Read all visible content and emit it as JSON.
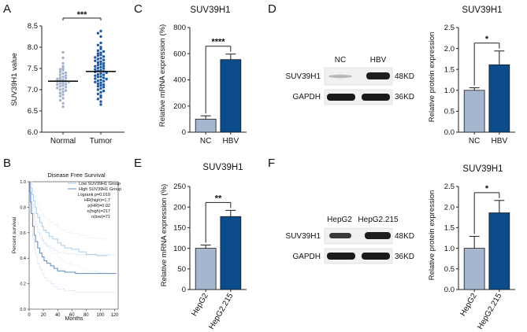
{
  "panel_labels": [
    "A",
    "B",
    "C",
    "D",
    "E",
    "F"
  ],
  "colors": {
    "light": "#a5b6cf",
    "dark": "#0d4c8c",
    "edge": "#1a1a1a",
    "scatter_light": "#a4b4cc",
    "scatter_dark": "#1f5aa6"
  },
  "chart_data": [
    {
      "id": "A",
      "type": "scatter",
      "title": "",
      "ylabel": "SUV39H1 value",
      "xlabel": "",
      "categories": [
        "Normal",
        "Tumor"
      ],
      "ylim": [
        6.0,
        8.5
      ],
      "yticks": [
        "6.0",
        "6.5",
        "7.0",
        "7.5",
        "8.0",
        "8.5"
      ],
      "means": [
        7.2,
        7.43
      ],
      "significance": "***",
      "series": [
        {
          "name": "Normal",
          "values": [
            7.88,
            7.75,
            7.62,
            7.55,
            7.5,
            7.48,
            7.46,
            7.42,
            7.4,
            7.38,
            7.35,
            7.33,
            7.3,
            7.28,
            7.27,
            7.25,
            7.23,
            7.22,
            7.2,
            7.19,
            7.18,
            7.16,
            7.15,
            7.13,
            7.12,
            7.1,
            7.08,
            7.06,
            7.04,
            7.02,
            7.0,
            6.98,
            6.95,
            6.92,
            6.88,
            6.85,
            6.8,
            6.75,
            6.68,
            6.6
          ]
        },
        {
          "name": "Tumor",
          "values": [
            8.38,
            8.33,
            8.25,
            8.1,
            8.05,
            8.0,
            7.96,
            7.92,
            7.9,
            7.87,
            7.85,
            7.82,
            7.8,
            7.78,
            7.76,
            7.74,
            7.72,
            7.7,
            7.68,
            7.66,
            7.64,
            7.62,
            7.6,
            7.58,
            7.56,
            7.55,
            7.53,
            7.51,
            7.5,
            7.48,
            7.46,
            7.44,
            7.43,
            7.42,
            7.4,
            7.38,
            7.36,
            7.35,
            7.33,
            7.31,
            7.3,
            7.28,
            7.26,
            7.25,
            7.23,
            7.21,
            7.2,
            7.18,
            7.16,
            7.14,
            7.12,
            7.1,
            7.08,
            7.06,
            7.03,
            7.0,
            6.97,
            6.94,
            6.9,
            6.86,
            6.82,
            6.78,
            6.72,
            6.65
          ]
        }
      ]
    },
    {
      "id": "B",
      "type": "line",
      "title": "Disease Free Survival",
      "xlabel": "Months",
      "ylabel": "Percent survival",
      "xlim": [
        0,
        125
      ],
      "ylim": [
        0,
        1.0
      ],
      "xticks": [
        "0",
        "20",
        "40",
        "60",
        "80",
        "100",
        "120"
      ],
      "yticks": [
        "0.0",
        "0.2",
        "0.4",
        "0.6",
        "0.8",
        "1.0"
      ],
      "legend": [
        "Low SUV39H1 Group",
        "High SUV39H1 Group"
      ],
      "stats": [
        "Logrank p=0.019",
        "HR(high)=1.7",
        "p(HR)=0.02",
        "n(high)=217",
        "n(low)=71"
      ],
      "series": [
        {
          "name": "Low SUV39H1 Group",
          "x": [
            0,
            2,
            4,
            6,
            8,
            10,
            12,
            15,
            18,
            20,
            24,
            28,
            33,
            40,
            45,
            50,
            60,
            70,
            80,
            95,
            105,
            110
          ],
          "y": [
            1.0,
            0.95,
            0.9,
            0.85,
            0.8,
            0.75,
            0.72,
            0.68,
            0.65,
            0.62,
            0.6,
            0.57,
            0.55,
            0.52,
            0.5,
            0.48,
            0.47,
            0.45,
            0.43,
            0.42,
            0.42,
            0.42
          ]
        },
        {
          "name": "High SUV39H1 Group",
          "x": [
            0,
            1,
            2,
            3,
            5,
            7,
            9,
            12,
            15,
            18,
            21,
            25,
            30,
            35,
            40,
            45,
            50,
            55,
            65,
            80,
            100,
            122
          ],
          "y": [
            1.0,
            0.92,
            0.84,
            0.75,
            0.65,
            0.58,
            0.53,
            0.48,
            0.44,
            0.41,
            0.38,
            0.36,
            0.34,
            0.32,
            0.3,
            0.3,
            0.29,
            0.29,
            0.28,
            0.28,
            0.28,
            0.28
          ]
        }
      ]
    },
    {
      "id": "C",
      "type": "bar",
      "title": "SUV39H1",
      "ylabel": "Relative mRNA expression (%)",
      "xlabel": "",
      "categories": [
        "NC",
        "HBV"
      ],
      "values": [
        100,
        555
      ],
      "errors": [
        25,
        42
      ],
      "ylim": [
        0,
        800
      ],
      "yticks": [
        "0",
        "200",
        "400",
        "600",
        "800"
      ],
      "significance": "****"
    },
    {
      "id": "D",
      "type": "bar",
      "title": "SUV39H1",
      "ylabel": "Relative protein expression",
      "xlabel": "",
      "categories": [
        "NC",
        "HBV"
      ],
      "values": [
        1.0,
        1.61
      ],
      "errors": [
        0.06,
        0.33
      ],
      "ylim": [
        0,
        2.5
      ],
      "yticks": [
        "0.0",
        "0.5",
        "1.0",
        "1.5",
        "2.0",
        "2.5"
      ],
      "significance": "*"
    },
    {
      "id": "E",
      "type": "bar",
      "title": "SUV39H1",
      "ylabel": "Relative mRNA expression (%)",
      "xlabel": "",
      "categories": [
        "HepG2",
        "HepG2.215"
      ],
      "values": [
        100,
        177
      ],
      "errors": [
        8,
        15
      ],
      "ylim": [
        0,
        250
      ],
      "yticks": [
        "0",
        "50",
        "100",
        "150",
        "200",
        "250"
      ],
      "significance": "**"
    },
    {
      "id": "F",
      "type": "bar",
      "title": "SUV39H1",
      "ylabel": "Relative protein expression",
      "xlabel": "",
      "categories": [
        "HepG2",
        "HepG2.215"
      ],
      "values": [
        1.0,
        1.86
      ],
      "errors": [
        0.29,
        0.3
      ],
      "ylim": [
        0,
        2.5
      ],
      "yticks": [
        "0.0",
        "0.5",
        "1.0",
        "1.5",
        "2.0",
        "2.5"
      ],
      "significance": "*"
    }
  ],
  "blots": [
    {
      "id": "D",
      "lanes": [
        "NC",
        "HBV"
      ],
      "rows": [
        {
          "label": "SUV39H1",
          "size": "48KD"
        },
        {
          "label": "GAPDH",
          "size": "36KD"
        }
      ]
    },
    {
      "id": "F",
      "lanes": [
        "HepG2",
        "HepG2.215"
      ],
      "rows": [
        {
          "label": "SUV39H1",
          "size": "48KD"
        },
        {
          "label": "GAPDH",
          "size": "36KD"
        }
      ]
    }
  ]
}
